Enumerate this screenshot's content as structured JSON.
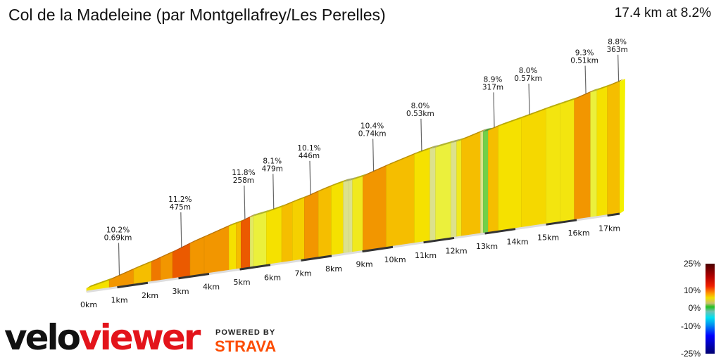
{
  "header": {
    "title": "Col de la Madeleine (par Montgellafrey/Les Perelles)",
    "summary": "17.4 km at 8.2%"
  },
  "chart_data": {
    "type": "area",
    "title": "Col de la Madeleine (par Montgellafrey/Les Perelles)",
    "total_km": 17.4,
    "avg_grade": 8.2,
    "x_ticks": [
      "0km",
      "1km",
      "2km",
      "3km",
      "4km",
      "5km",
      "6km",
      "7km",
      "8km",
      "9km",
      "10km",
      "11km",
      "12km",
      "13km",
      "14km",
      "15km",
      "16km",
      "17km"
    ],
    "segments_km_grade": [
      [
        0,
        0.74,
        7
      ],
      [
        0.74,
        1.54,
        10
      ],
      [
        1.54,
        2.12,
        9
      ],
      [
        2.12,
        2.42,
        11
      ],
      [
        2.42,
        2.81,
        10
      ],
      [
        2.81,
        3.38,
        12
      ],
      [
        3.38,
        3.84,
        10
      ],
      [
        3.84,
        4.65,
        10
      ],
      [
        4.65,
        4.88,
        7
      ],
      [
        4.88,
        5.04,
        9
      ],
      [
        5.04,
        5.34,
        12
      ],
      [
        5.34,
        5.45,
        4
      ],
      [
        5.45,
        5.87,
        5
      ],
      [
        5.87,
        6.37,
        7
      ],
      [
        6.37,
        6.72,
        9
      ],
      [
        6.72,
        7.11,
        8
      ],
      [
        7.11,
        7.57,
        10
      ],
      [
        7.57,
        7.99,
        9
      ],
      [
        7.99,
        8.38,
        7
      ],
      [
        8.38,
        8.56,
        3
      ],
      [
        8.56,
        8.68,
        3
      ],
      [
        8.68,
        9.02,
        6
      ],
      [
        9.02,
        9.78,
        10
      ],
      [
        9.78,
        10.7,
        9
      ],
      [
        10.7,
        11.21,
        7
      ],
      [
        11.21,
        11.39,
        3
      ],
      [
        11.39,
        11.9,
        5
      ],
      [
        11.9,
        12.08,
        3
      ],
      [
        12.08,
        12.24,
        6
      ],
      [
        12.24,
        12.86,
        9
      ],
      [
        12.86,
        12.95,
        3
      ],
      [
        12.95,
        13.11,
        1
      ],
      [
        13.11,
        13.44,
        9
      ],
      [
        13.44,
        14.19,
        7
      ],
      [
        14.19,
        15.0,
        7.5
      ],
      [
        15.0,
        15.46,
        6.5
      ],
      [
        15.46,
        15.92,
        6.5
      ],
      [
        15.92,
        16.45,
        10
      ],
      [
        16.45,
        16.66,
        5
      ],
      [
        16.66,
        17.0,
        7
      ],
      [
        17.0,
        17.4,
        9
      ]
    ],
    "annotations": [
      {
        "km": 1.0,
        "grade": "10.2%",
        "length": "0.69km"
      },
      {
        "km": 3.03,
        "grade": "11.2%",
        "length": "475m"
      },
      {
        "km": 5.1,
        "grade": "11.8%",
        "length": "258m"
      },
      {
        "km": 6.04,
        "grade": "8.1%",
        "length": "479m"
      },
      {
        "km": 7.24,
        "grade": "10.1%",
        "length": "446m"
      },
      {
        "km": 9.3,
        "grade": "10.4%",
        "length": "0.74km"
      },
      {
        "km": 10.87,
        "grade": "8.0%",
        "length": "0.53km"
      },
      {
        "km": 13.24,
        "grade": "8.9%",
        "length": "317m"
      },
      {
        "km": 14.39,
        "grade": "8.0%",
        "length": "0.57km"
      },
      {
        "km": 16.23,
        "grade": "9.3%",
        "length": "0.51km"
      },
      {
        "km": 17.3,
        "grade": "8.8%",
        "length": "363m"
      }
    ],
    "legend": {
      "labels": [
        "25%",
        "10%",
        "0%",
        "-10%",
        "-25%"
      ],
      "range": [
        -25,
        25
      ]
    }
  },
  "branding": {
    "velo": "velo",
    "viewer": "viewer",
    "powered_by": "POWERED BY",
    "strava": "STRAVA"
  }
}
